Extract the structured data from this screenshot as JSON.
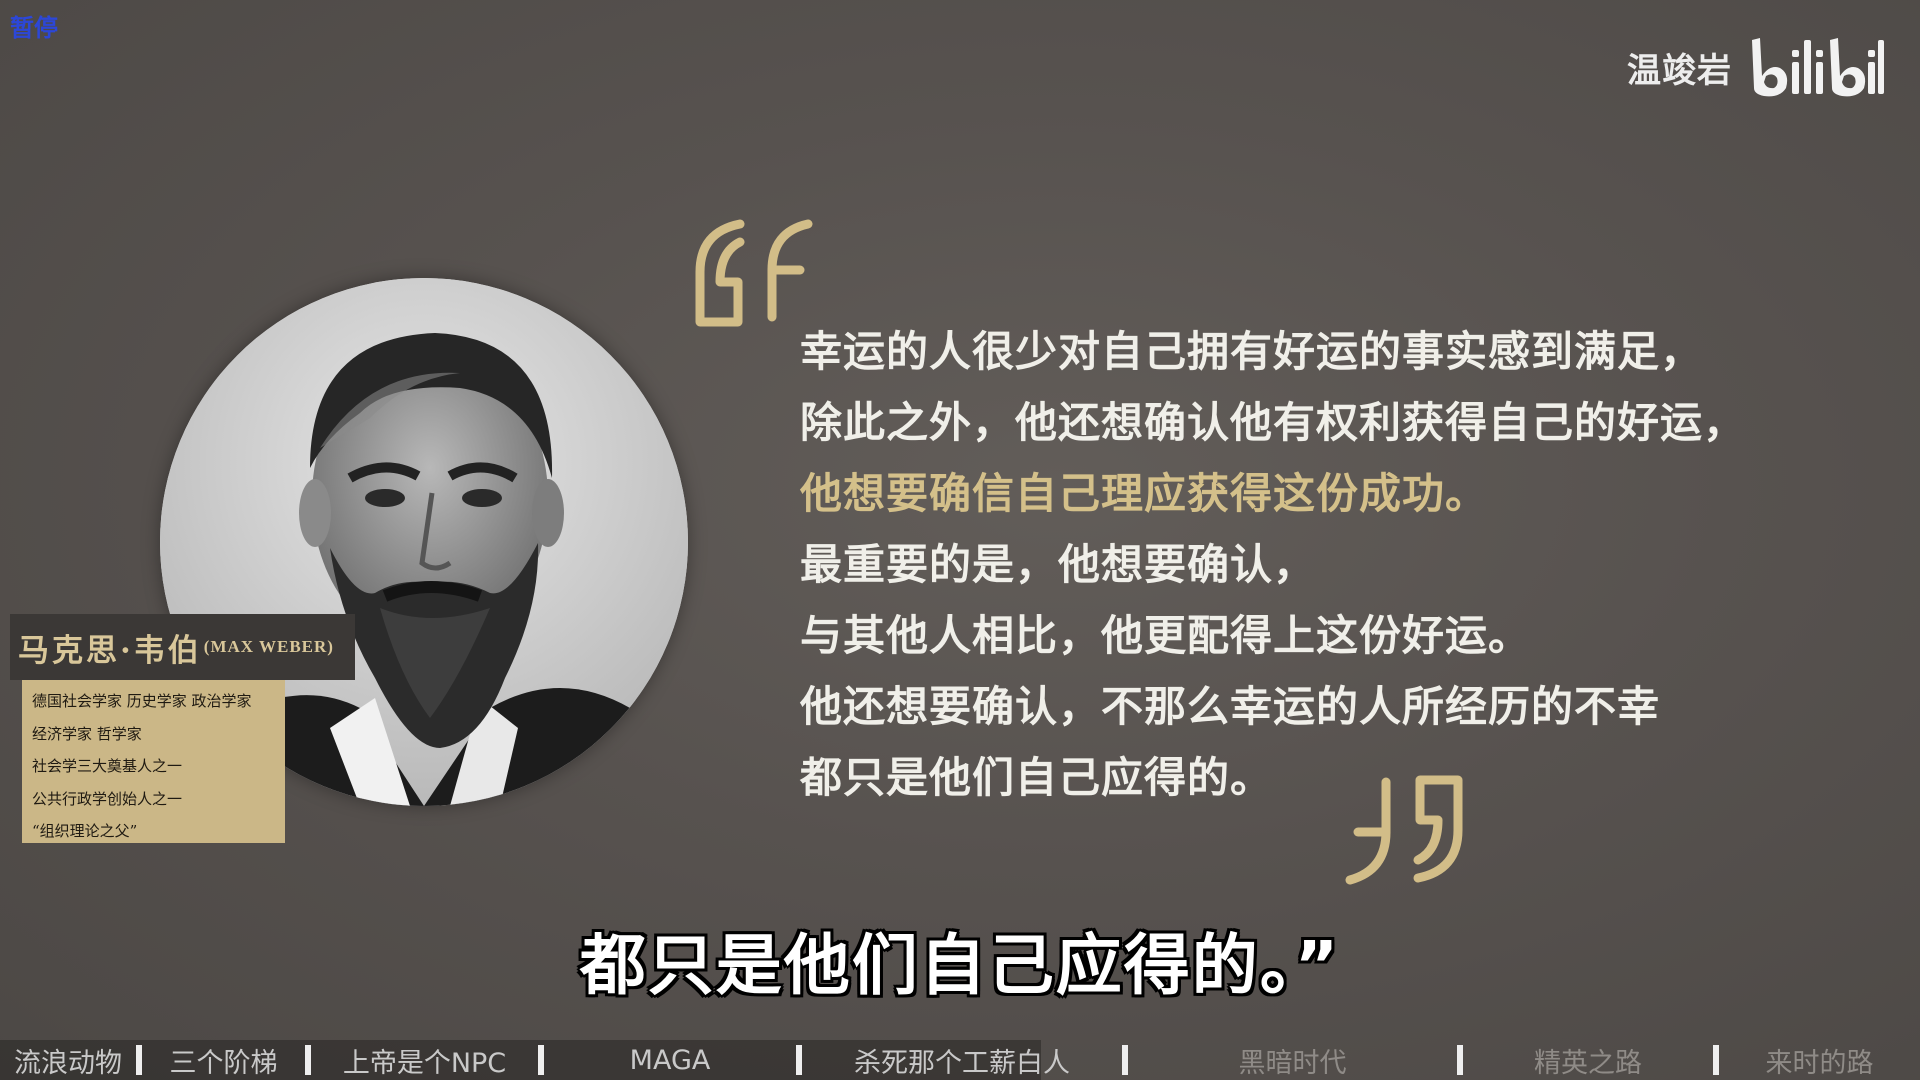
{
  "player": {
    "pause_label": "暂停",
    "watermark_author": "温竣岩",
    "watermark_logo": "bilibili"
  },
  "person": {
    "name_cn": "马克思·韦伯",
    "name_en": "(MAX WEBER)",
    "titles": [
      "德国社会学家 历史学家 政治学家",
      "经济学家 哲学家",
      "社会学三大奠基人之一",
      "公共行政学创始人之一",
      "“组织理论之父”"
    ]
  },
  "quote": {
    "lines": [
      {
        "text": "幸运的人很少对自己拥有好运的事实感到满足，",
        "highlight": false
      },
      {
        "text": "除此之外，他还想确认他有权利获得自己的好运，",
        "highlight": false
      },
      {
        "text": "他想要确信自己理应获得这份成功。",
        "highlight": true
      },
      {
        "text": "最重要的是，他想要确认，",
        "highlight": false
      },
      {
        "text": "与其他人相比，他更配得上这份好运。",
        "highlight": false
      },
      {
        "text": "他还想要确认，不那么幸运的人所经历的不幸",
        "highlight": false
      },
      {
        "text": "都只是他们自己应得的。",
        "highlight": false
      }
    ],
    "accent_color": "#d4c08a"
  },
  "subtitle": "都只是他们自己应得的。”",
  "chapters": {
    "items": [
      {
        "label": "流浪动物",
        "state": "played"
      },
      {
        "label": "三个阶梯",
        "state": "played"
      },
      {
        "label": "上帝是个NPC",
        "state": "played"
      },
      {
        "label": "MAGA",
        "state": "played"
      },
      {
        "label": "杀死那个工薪白人",
        "state": "current"
      },
      {
        "label": "黑暗时代",
        "state": "upcoming"
      },
      {
        "label": "精英之路",
        "state": "upcoming"
      },
      {
        "label": "来时的路",
        "state": "upcoming"
      }
    ],
    "progress_fraction": 0.542
  }
}
